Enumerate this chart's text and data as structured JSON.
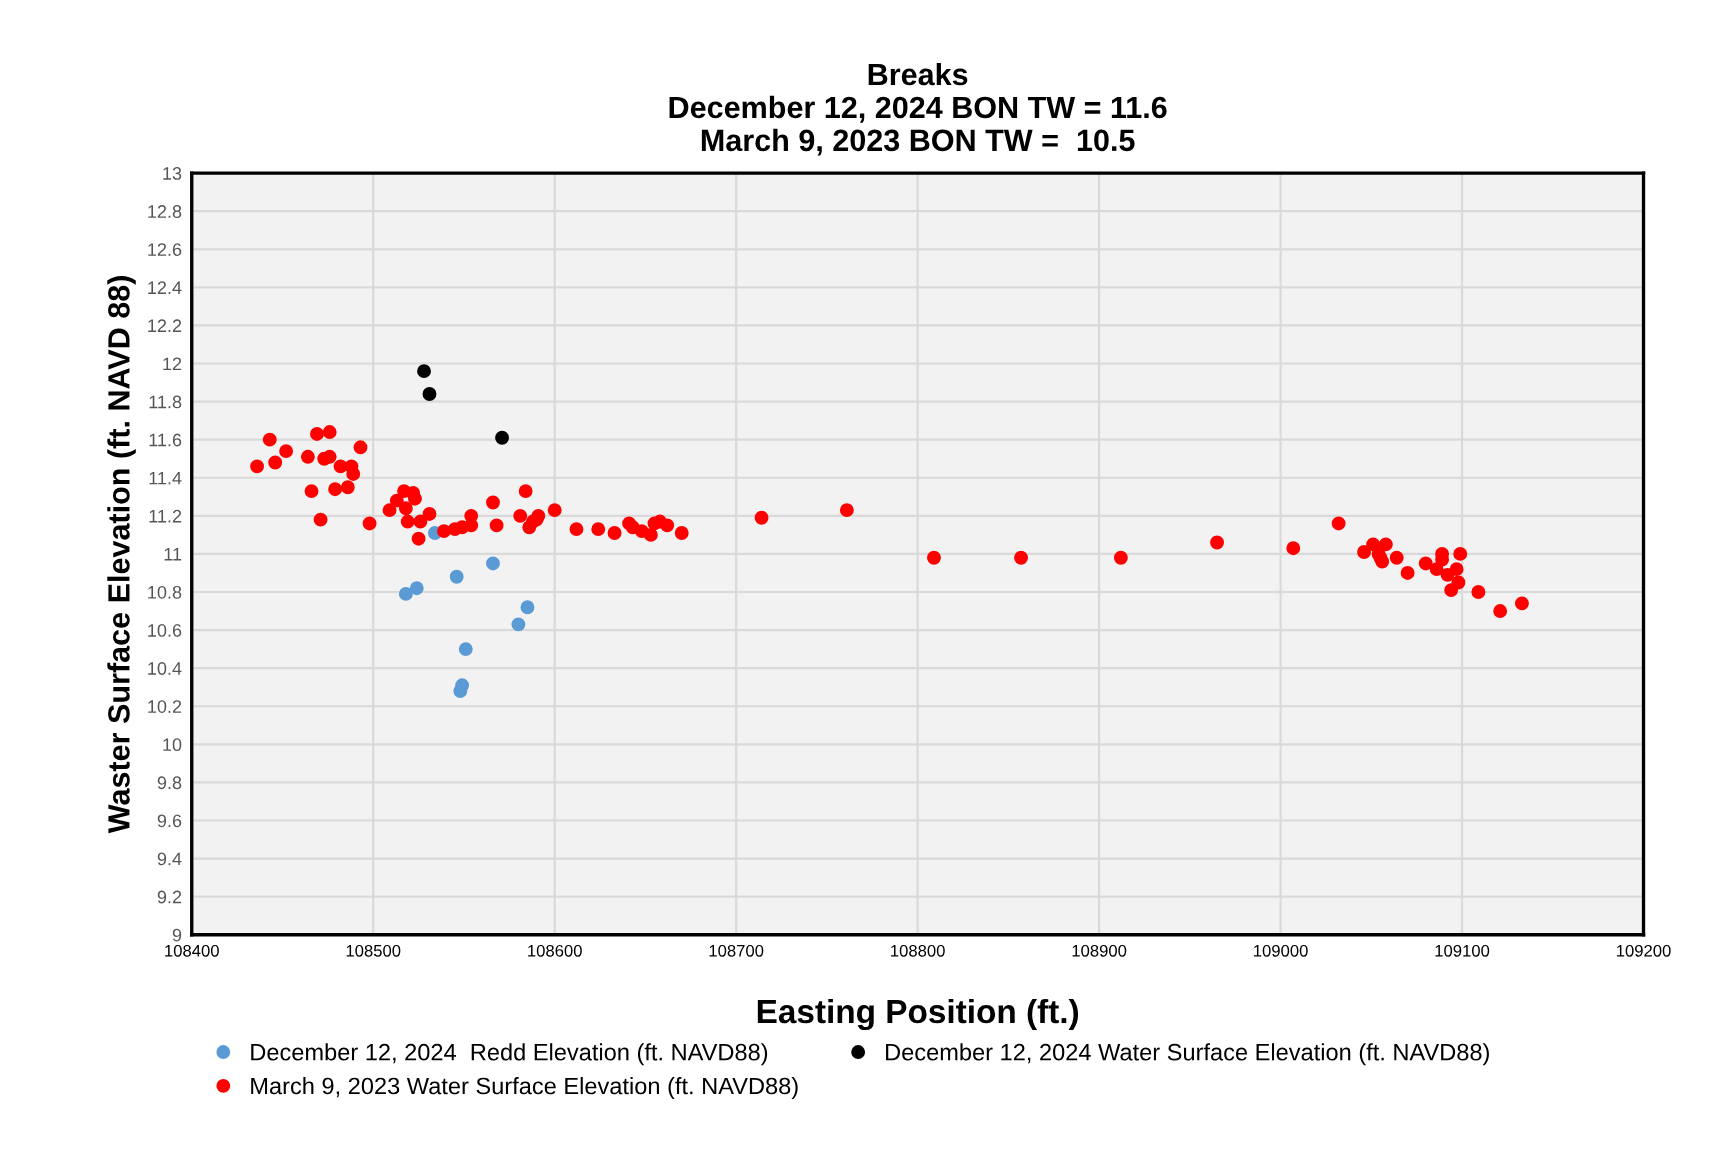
{
  "chart_data": {
    "type": "scatter",
    "title": "Breaks\nDecember 12, 2024 BON TW = 11.6\nMarch 9, 2023 BON TW =  10.5",
    "xlabel": "Easting Position (ft.)",
    "ylabel": "Waster Surface Elevation (ft. NAVD 88)",
    "xlim": [
      108400,
      109200
    ],
    "xticks": [
      108400,
      108500,
      108600,
      108700,
      108800,
      108900,
      109000,
      109100,
      109200
    ],
    "ylim": [
      9,
      13
    ],
    "yticks": [
      9,
      9.2,
      9.4,
      9.6,
      9.8,
      10,
      10.2,
      10.4,
      10.6,
      10.8,
      11,
      11.2,
      11.4,
      11.6,
      11.8,
      12,
      12.2,
      12.4,
      12.6,
      12.8,
      13
    ],
    "grid": true,
    "legend": "bottom",
    "marker": "circle",
    "series": [
      {
        "name": "December 12, 2024  Redd Elevation (ft. NAVD88)",
        "color": "#5b9bd5",
        "x": [
          108534,
          108518,
          108524,
          108546,
          108566,
          108585,
          108580,
          108551,
          108549,
          108548
        ],
        "values": [
          11.11,
          10.79,
          10.82,
          10.88,
          10.95,
          10.72,
          10.63,
          10.5,
          10.31,
          10.28
        ]
      },
      {
        "name": "December 12, 2024 Water Surface Elevation (ft. NAVD88)",
        "color": "#000000",
        "x": [
          108528,
          108531,
          108571
        ],
        "values": [
          11.96,
          11.84,
          11.61
        ]
      },
      {
        "name": "March 9, 2023 Water Surface Elevation (ft. NAVD88)",
        "color": "#ff0000",
        "x": [
          108436,
          108443,
          108446,
          108452,
          108464,
          108466,
          108469,
          108471,
          108473,
          108476,
          108476,
          108479,
          108482,
          108486,
          108488,
          108489,
          108493,
          108498,
          108509,
          108513,
          108517,
          108518,
          108519,
          108522,
          108523,
          108525,
          108526,
          108531,
          108539,
          108545,
          108549,
          108554,
          108554,
          108566,
          108568,
          108581,
          108584,
          108586,
          108588,
          108590,
          108591,
          108600,
          108612,
          108624,
          108633,
          108641,
          108643,
          108648,
          108653,
          108655,
          108658,
          108662,
          108670,
          108714,
          108761,
          108809,
          108857,
          108912,
          108965,
          109007,
          109032,
          109046,
          109051,
          109054,
          109055,
          109058,
          109056,
          109064,
          109070,
          109080,
          109086,
          109089,
          109089,
          109092,
          109097,
          109099,
          109098,
          109094,
          109109,
          109121,
          109133
        ],
        "values": [
          11.46,
          11.6,
          11.48,
          11.54,
          11.51,
          11.33,
          11.63,
          11.18,
          11.5,
          11.64,
          11.51,
          11.34,
          11.46,
          11.35,
          11.46,
          11.42,
          11.56,
          11.16,
          11.23,
          11.28,
          11.33,
          11.24,
          11.17,
          11.32,
          11.29,
          11.08,
          11.17,
          11.21,
          11.12,
          11.13,
          11.14,
          11.2,
          11.15,
          11.27,
          11.15,
          11.2,
          11.33,
          11.14,
          11.17,
          11.18,
          11.2,
          11.23,
          11.13,
          11.13,
          11.11,
          11.16,
          11.14,
          11.12,
          11.1,
          11.16,
          11.17,
          11.15,
          11.11,
          11.19,
          11.23,
          10.98,
          10.98,
          10.98,
          11.06,
          11.03,
          11.16,
          11.01,
          11.05,
          11.0,
          10.98,
          11.05,
          10.96,
          10.98,
          10.9,
          10.95,
          10.92,
          11.0,
          10.97,
          10.89,
          10.92,
          11.0,
          10.85,
          10.81,
          10.8,
          10.7,
          10.74
        ]
      }
    ]
  }
}
